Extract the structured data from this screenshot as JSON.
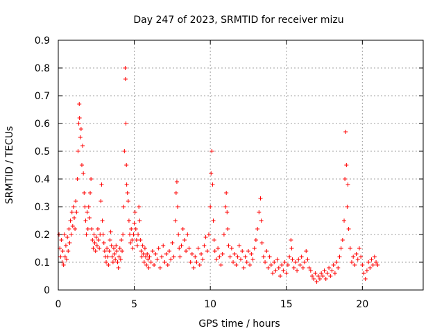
{
  "chart_data": {
    "type": "scatter",
    "title": "Day 247 of 2023, SRMTID for receiver mizu",
    "xlabel": "GPS time / hours",
    "ylabel": "SRMTID / TECUs",
    "xlim": [
      0,
      24
    ],
    "ylim": [
      0,
      0.9
    ],
    "xticks": [
      0,
      5,
      10,
      15,
      20
    ],
    "xtick_labels": [
      "0",
      "5",
      "10",
      "15",
      "20"
    ],
    "yticks": [
      0,
      0.1,
      0.2,
      0.3,
      0.4,
      0.5,
      0.6,
      0.7,
      0.8,
      0.9
    ],
    "ytick_labels": [
      "0",
      "0.1",
      "0.2",
      "0.3",
      "0.4",
      "0.5",
      "0.6",
      "0.7",
      "0.8",
      "0.9"
    ],
    "grid": true,
    "marker": "+",
    "color": "#ff0000",
    "series": [
      {
        "name": "SRMTID",
        "points": [
          [
            0.05,
            0.2
          ],
          [
            0.1,
            0.15
          ],
          [
            0.15,
            0.12
          ],
          [
            0.2,
            0.18
          ],
          [
            0.25,
            0.1
          ],
          [
            0.3,
            0.14
          ],
          [
            0.35,
            0.09
          ],
          [
            0.4,
            0.2
          ],
          [
            0.45,
            0.12
          ],
          [
            0.5,
            0.16
          ],
          [
            0.55,
            0.11
          ],
          [
            0.6,
            0.19
          ],
          [
            0.65,
            0.14
          ],
          [
            0.7,
            0.22
          ],
          [
            0.75,
            0.17
          ],
          [
            0.8,
            0.25
          ],
          [
            0.85,
            0.2
          ],
          [
            0.9,
            0.28
          ],
          [
            0.95,
            0.23
          ],
          [
            1.0,
            0.3
          ],
          [
            1.05,
            0.26
          ],
          [
            1.1,
            0.22
          ],
          [
            1.15,
            0.32
          ],
          [
            1.2,
            0.28
          ],
          [
            1.25,
            0.4
          ],
          [
            1.3,
            0.5
          ],
          [
            1.35,
            0.6
          ],
          [
            1.38,
            0.67
          ],
          [
            1.4,
            0.62
          ],
          [
            1.45,
            0.55
          ],
          [
            1.5,
            0.58
          ],
          [
            1.55,
            0.45
          ],
          [
            1.6,
            0.52
          ],
          [
            1.65,
            0.42
          ],
          [
            1.7,
            0.35
          ],
          [
            1.75,
            0.3
          ],
          [
            1.8,
            0.25
          ],
          [
            1.85,
            0.2
          ],
          [
            1.9,
            0.28
          ],
          [
            1.95,
            0.22
          ],
          [
            2.0,
            0.3
          ],
          [
            2.05,
            0.26
          ],
          [
            2.1,
            0.35
          ],
          [
            2.15,
            0.4
          ],
          [
            2.2,
            0.22
          ],
          [
            2.25,
            0.18
          ],
          [
            2.3,
            0.15
          ],
          [
            2.35,
            0.2
          ],
          [
            2.4,
            0.17
          ],
          [
            2.45,
            0.14
          ],
          [
            2.5,
            0.19
          ],
          [
            2.55,
            0.16
          ],
          [
            2.6,
            0.22
          ],
          [
            2.65,
            0.18
          ],
          [
            2.7,
            0.15
          ],
          [
            2.75,
            0.2
          ],
          [
            2.8,
            0.32
          ],
          [
            2.85,
            0.38
          ],
          [
            2.9,
            0.25
          ],
          [
            2.95,
            0.2
          ],
          [
            3.0,
            0.17
          ],
          [
            3.05,
            0.14
          ],
          [
            3.1,
            0.12
          ],
          [
            3.15,
            0.1
          ],
          [
            3.2,
            0.15
          ],
          [
            3.25,
            0.12
          ],
          [
            3.3,
            0.09
          ],
          [
            3.35,
            0.14
          ],
          [
            3.4,
            0.18
          ],
          [
            3.45,
            0.21
          ],
          [
            3.5,
            0.16
          ],
          [
            3.55,
            0.12
          ],
          [
            3.6,
            0.1
          ],
          [
            3.65,
            0.15
          ],
          [
            3.7,
            0.13
          ],
          [
            3.75,
            0.11
          ],
          [
            3.8,
            0.16
          ],
          [
            3.85,
            0.14
          ],
          [
            3.9,
            0.1
          ],
          [
            3.95,
            0.08
          ],
          [
            4.0,
            0.12
          ],
          [
            4.05,
            0.15
          ],
          [
            4.1,
            0.11
          ],
          [
            4.15,
            0.18
          ],
          [
            4.2,
            0.14
          ],
          [
            4.25,
            0.2
          ],
          [
            4.3,
            0.3
          ],
          [
            4.35,
            0.5
          ],
          [
            4.4,
            0.8
          ],
          [
            4.42,
            0.76
          ],
          [
            4.45,
            0.6
          ],
          [
            4.48,
            0.45
          ],
          [
            4.5,
            0.38
          ],
          [
            4.55,
            0.35
          ],
          [
            4.6,
            0.32
          ],
          [
            4.65,
            0.25
          ],
          [
            4.7,
            0.2
          ],
          [
            4.75,
            0.17
          ],
          [
            4.8,
            0.22
          ],
          [
            4.85,
            0.18
          ],
          [
            4.9,
            0.15
          ],
          [
            4.95,
            0.2
          ],
          [
            5.0,
            0.24
          ],
          [
            5.05,
            0.28
          ],
          [
            5.1,
            0.22
          ],
          [
            5.15,
            0.18
          ],
          [
            5.2,
            0.16
          ],
          [
            5.25,
            0.2
          ],
          [
            5.3,
            0.3
          ],
          [
            5.35,
            0.25
          ],
          [
            5.4,
            0.18
          ],
          [
            5.45,
            0.14
          ],
          [
            5.5,
            0.12
          ],
          [
            5.55,
            0.16
          ],
          [
            5.6,
            0.13
          ],
          [
            5.65,
            0.1
          ],
          [
            5.7,
            0.15
          ],
          [
            5.75,
            0.12
          ],
          [
            5.8,
            0.09
          ],
          [
            5.85,
            0.13
          ],
          [
            5.9,
            0.11
          ],
          [
            5.95,
            0.08
          ],
          [
            6.0,
            0.12
          ],
          [
            6.1,
            0.1
          ],
          [
            6.2,
            0.14
          ],
          [
            6.3,
            0.09
          ],
          [
            6.4,
            0.13
          ],
          [
            6.5,
            0.11
          ],
          [
            6.6,
            0.15
          ],
          [
            6.7,
            0.08
          ],
          [
            6.8,
            0.12
          ],
          [
            6.9,
            0.16
          ],
          [
            7.0,
            0.1
          ],
          [
            7.1,
            0.13
          ],
          [
            7.2,
            0.09
          ],
          [
            7.3,
            0.14
          ],
          [
            7.4,
            0.11
          ],
          [
            7.5,
            0.17
          ],
          [
            7.6,
            0.12
          ],
          [
            7.7,
            0.25
          ],
          [
            7.75,
            0.35
          ],
          [
            7.8,
            0.39
          ],
          [
            7.85,
            0.3
          ],
          [
            7.9,
            0.2
          ],
          [
            7.95,
            0.15
          ],
          [
            8.0,
            0.12
          ],
          [
            8.1,
            0.16
          ],
          [
            8.2,
            0.22
          ],
          [
            8.3,
            0.18
          ],
          [
            8.4,
            0.14
          ],
          [
            8.5,
            0.2
          ],
          [
            8.6,
            0.15
          ],
          [
            8.7,
            0.1
          ],
          [
            8.8,
            0.13
          ],
          [
            8.9,
            0.08
          ],
          [
            9.0,
            0.12
          ],
          [
            9.1,
            0.1
          ],
          [
            9.2,
            0.15
          ],
          [
            9.3,
            0.09
          ],
          [
            9.4,
            0.13
          ],
          [
            9.5,
            0.11
          ],
          [
            9.6,
            0.16
          ],
          [
            9.7,
            0.19
          ],
          [
            9.8,
            0.14
          ],
          [
            9.9,
            0.2
          ],
          [
            10.0,
            0.3
          ],
          [
            10.05,
            0.42
          ],
          [
            10.1,
            0.5
          ],
          [
            10.15,
            0.38
          ],
          [
            10.2,
            0.25
          ],
          [
            10.25,
            0.18
          ],
          [
            10.3,
            0.14
          ],
          [
            10.4,
            0.11
          ],
          [
            10.5,
            0.15
          ],
          [
            10.6,
            0.12
          ],
          [
            10.7,
            0.09
          ],
          [
            10.8,
            0.13
          ],
          [
            10.9,
            0.2
          ],
          [
            11.0,
            0.3
          ],
          [
            11.05,
            0.35
          ],
          [
            11.1,
            0.28
          ],
          [
            11.15,
            0.22
          ],
          [
            11.2,
            0.16
          ],
          [
            11.3,
            0.12
          ],
          [
            11.4,
            0.15
          ],
          [
            11.5,
            0.1
          ],
          [
            11.6,
            0.13
          ],
          [
            11.7,
            0.09
          ],
          [
            11.8,
            0.12
          ],
          [
            11.9,
            0.16
          ],
          [
            12.0,
            0.11
          ],
          [
            12.1,
            0.14
          ],
          [
            12.2,
            0.08
          ],
          [
            12.3,
            0.12
          ],
          [
            12.4,
            0.1
          ],
          [
            12.5,
            0.14
          ],
          [
            12.6,
            0.09
          ],
          [
            12.7,
            0.13
          ],
          [
            12.8,
            0.11
          ],
          [
            12.9,
            0.15
          ],
          [
            13.0,
            0.18
          ],
          [
            13.1,
            0.22
          ],
          [
            13.2,
            0.28
          ],
          [
            13.3,
            0.33
          ],
          [
            13.35,
            0.25
          ],
          [
            13.4,
            0.17
          ],
          [
            13.5,
            0.12
          ],
          [
            13.6,
            0.1
          ],
          [
            13.7,
            0.14
          ],
          [
            13.8,
            0.08
          ],
          [
            13.9,
            0.12
          ],
          [
            14.0,
            0.09
          ],
          [
            14.1,
            0.06
          ],
          [
            14.2,
            0.1
          ],
          [
            14.3,
            0.07
          ],
          [
            14.4,
            0.11
          ],
          [
            14.5,
            0.08
          ],
          [
            14.6,
            0.05
          ],
          [
            14.7,
            0.09
          ],
          [
            14.8,
            0.07
          ],
          [
            14.9,
            0.1
          ],
          [
            15.0,
            0.06
          ],
          [
            15.1,
            0.09
          ],
          [
            15.2,
            0.12
          ],
          [
            15.3,
            0.18
          ],
          [
            15.35,
            0.15
          ],
          [
            15.4,
            0.11
          ],
          [
            15.5,
            0.08
          ],
          [
            15.6,
            0.1
          ],
          [
            15.7,
            0.07
          ],
          [
            15.8,
            0.11
          ],
          [
            15.9,
            0.09
          ],
          [
            16.0,
            0.12
          ],
          [
            16.1,
            0.08
          ],
          [
            16.2,
            0.1
          ],
          [
            16.3,
            0.14
          ],
          [
            16.4,
            0.11
          ],
          [
            16.5,
            0.08
          ],
          [
            16.6,
            0.07
          ],
          [
            16.7,
            0.05
          ],
          [
            16.8,
            0.04
          ],
          [
            16.9,
            0.06
          ],
          [
            17.0,
            0.03
          ],
          [
            17.1,
            0.05
          ],
          [
            17.2,
            0.04
          ],
          [
            17.3,
            0.06
          ],
          [
            17.4,
            0.05
          ],
          [
            17.5,
            0.07
          ],
          [
            17.6,
            0.04
          ],
          [
            17.7,
            0.06
          ],
          [
            17.8,
            0.08
          ],
          [
            17.9,
            0.05
          ],
          [
            18.0,
            0.07
          ],
          [
            18.1,
            0.09
          ],
          [
            18.2,
            0.06
          ],
          [
            18.3,
            0.1
          ],
          [
            18.4,
            0.08
          ],
          [
            18.5,
            0.12
          ],
          [
            18.6,
            0.15
          ],
          [
            18.7,
            0.18
          ],
          [
            18.8,
            0.25
          ],
          [
            18.85,
            0.4
          ],
          [
            18.9,
            0.57
          ],
          [
            18.95,
            0.45
          ],
          [
            19.0,
            0.3
          ],
          [
            19.05,
            0.38
          ],
          [
            19.1,
            0.22
          ],
          [
            19.2,
            0.15
          ],
          [
            19.3,
            0.1
          ],
          [
            19.4,
            0.12
          ],
          [
            19.5,
            0.09
          ],
          [
            19.6,
            0.13
          ],
          [
            19.7,
            0.11
          ],
          [
            19.8,
            0.15
          ],
          [
            19.9,
            0.12
          ],
          [
            20.0,
            0.09
          ],
          [
            20.1,
            0.06
          ],
          [
            20.2,
            0.04
          ],
          [
            20.3,
            0.07
          ],
          [
            20.4,
            0.1
          ],
          [
            20.5,
            0.08
          ],
          [
            20.6,
            0.11
          ],
          [
            20.7,
            0.09
          ],
          [
            20.8,
            0.12
          ],
          [
            20.9,
            0.1
          ],
          [
            21.0,
            0.09
          ]
        ]
      }
    ]
  }
}
